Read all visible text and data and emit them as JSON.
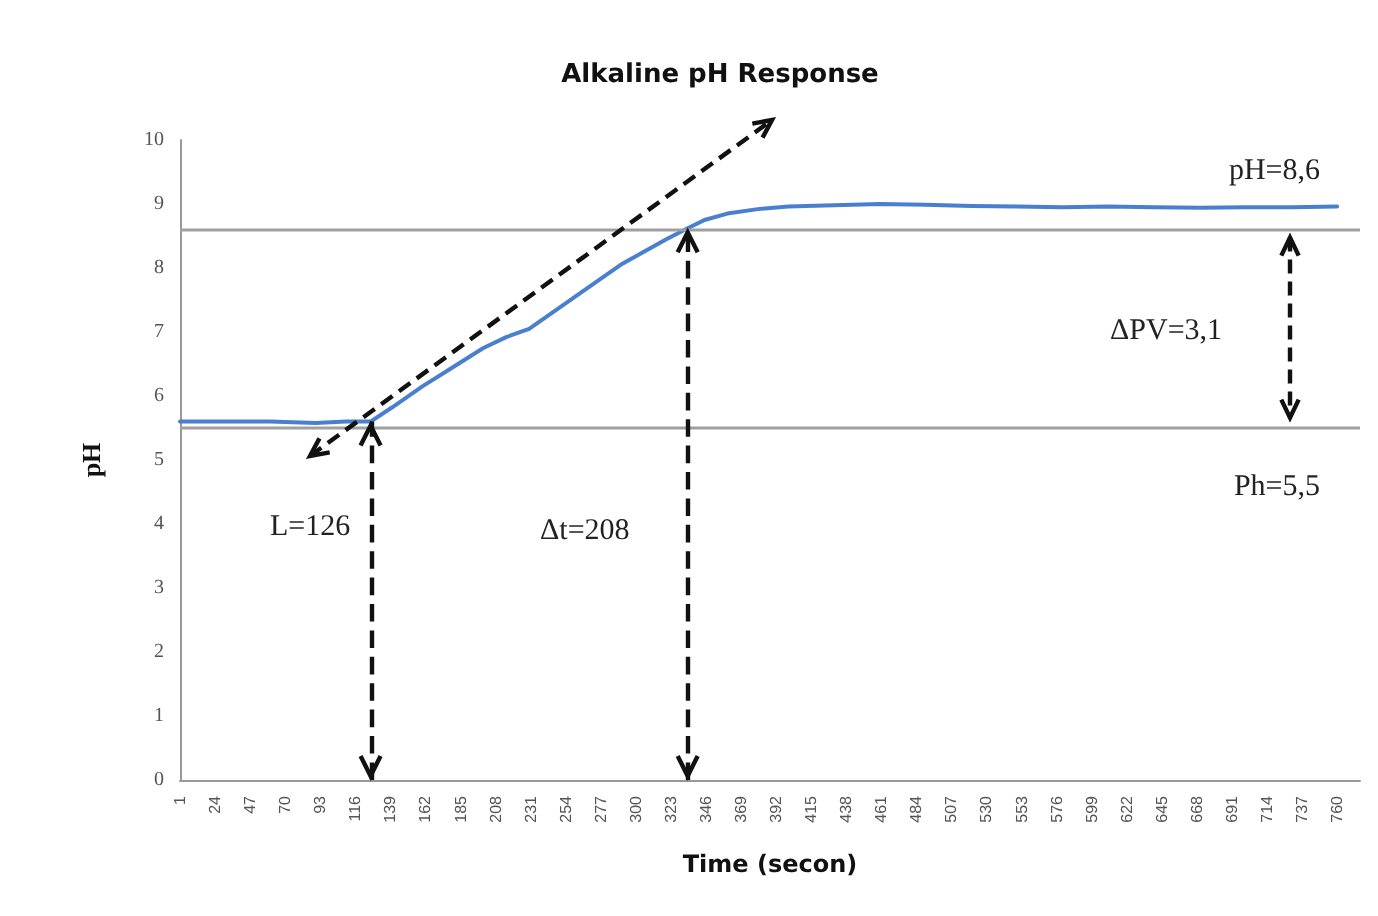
{
  "chart_data": {
    "type": "line",
    "title": "Alkaline pH Response",
    "xlabel": "Time (secon)",
    "ylabel": "pH",
    "x": [
      1,
      30,
      60,
      90,
      110,
      126,
      140,
      160,
      180,
      200,
      215,
      230,
      245,
      260,
      275,
      290,
      305,
      320,
      334,
      345,
      360,
      380,
      400,
      430,
      460,
      490,
      520,
      550,
      580,
      610,
      640,
      670,
      700,
      730,
      760
    ],
    "series": [
      {
        "color": "#4a7fd0",
        "values": [
          5.6,
          5.6,
          5.6,
          5.58,
          5.6,
          5.6,
          5.82,
          6.15,
          6.45,
          6.75,
          6.92,
          7.05,
          7.3,
          7.55,
          7.8,
          8.05,
          8.25,
          8.45,
          8.62,
          8.75,
          8.85,
          8.92,
          8.96,
          8.98,
          9.0,
          8.99,
          8.97,
          8.96,
          8.95,
          8.96,
          8.95,
          8.94,
          8.95,
          8.95,
          8.96
        ]
      }
    ],
    "xlim": [
      1,
      775
    ],
    "xticks": [
      1,
      24,
      47,
      70,
      93,
      116,
      139,
      162,
      185,
      208,
      231,
      254,
      277,
      300,
      323,
      346,
      369,
      392,
      415,
      438,
      461,
      484,
      507,
      530,
      553,
      576,
      599,
      622,
      645,
      668,
      691,
      714,
      737,
      760
    ],
    "ylim": [
      0,
      10
    ],
    "yticks": [
      0,
      1,
      2,
      3,
      4,
      5,
      6,
      7,
      8,
      9,
      10
    ],
    "grid": false,
    "marker": "none",
    "line_style": "solid",
    "ref_lines": [
      {
        "axis": "y",
        "value": 8.6,
        "label": "pH=8,6",
        "color": "#a0a0a0"
      },
      {
        "axis": "y",
        "value": 5.5,
        "label": "Ph=5,5",
        "color": "#a0a0a0"
      },
      {
        "axis": "x",
        "value": 126,
        "color": "#111111",
        "line_style": "dashed"
      },
      {
        "axis": "x",
        "value": 334,
        "color": "#111111",
        "line_style": "dashed"
      }
    ],
    "annotations": [
      "L=126",
      "Δt=208",
      "ΔPV=3,1"
    ]
  }
}
